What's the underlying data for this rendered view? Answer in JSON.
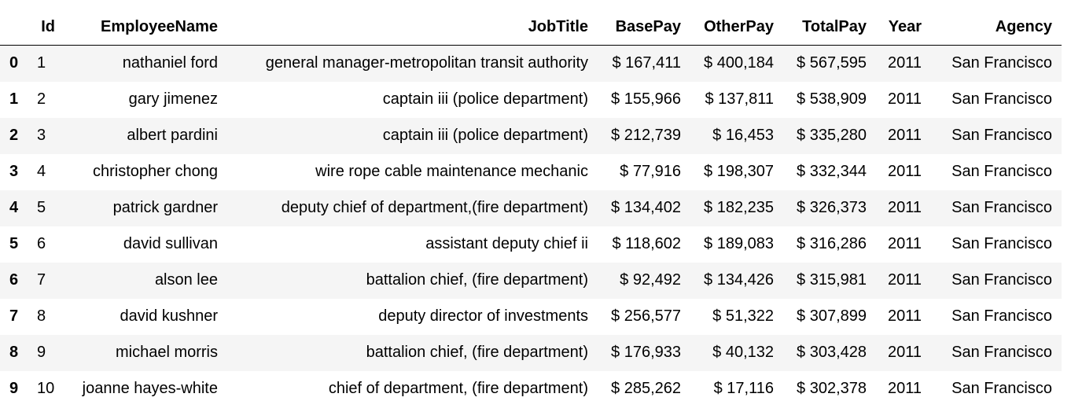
{
  "table": {
    "columns": [
      "",
      "Id",
      "EmployeeName",
      "JobTitle",
      "BasePay",
      "OtherPay",
      "TotalPay",
      "Year",
      "Agency"
    ],
    "rows": [
      {
        "index": "0",
        "id": "1",
        "name": "nathaniel ford",
        "job": "general manager-metropolitan transit authority",
        "base": "$ 167,411",
        "other": "$ 400,184",
        "total": "$ 567,595",
        "year": "2011",
        "agency": "San Francisco"
      },
      {
        "index": "1",
        "id": "2",
        "name": "gary jimenez",
        "job": "captain iii (police department)",
        "base": "$ 155,966",
        "other": "$ 137,811",
        "total": "$ 538,909",
        "year": "2011",
        "agency": "San Francisco"
      },
      {
        "index": "2",
        "id": "3",
        "name": "albert pardini",
        "job": "captain iii (police department)",
        "base": "$ 212,739",
        "other": "$ 16,453",
        "total": "$ 335,280",
        "year": "2011",
        "agency": "San Francisco"
      },
      {
        "index": "3",
        "id": "4",
        "name": "christopher chong",
        "job": "wire rope cable maintenance mechanic",
        "base": "$ 77,916",
        "other": "$ 198,307",
        "total": "$ 332,344",
        "year": "2011",
        "agency": "San Francisco"
      },
      {
        "index": "4",
        "id": "5",
        "name": "patrick gardner",
        "job": "deputy chief of department,(fire department)",
        "base": "$ 134,402",
        "other": "$ 182,235",
        "total": "$ 326,373",
        "year": "2011",
        "agency": "San Francisco"
      },
      {
        "index": "5",
        "id": "6",
        "name": "david sullivan",
        "job": "assistant deputy chief ii",
        "base": "$ 118,602",
        "other": "$ 189,083",
        "total": "$ 316,286",
        "year": "2011",
        "agency": "San Francisco"
      },
      {
        "index": "6",
        "id": "7",
        "name": "alson lee",
        "job": "battalion chief, (fire department)",
        "base": "$ 92,492",
        "other": "$ 134,426",
        "total": "$ 315,981",
        "year": "2011",
        "agency": "San Francisco"
      },
      {
        "index": "7",
        "id": "8",
        "name": "david kushner",
        "job": "deputy director of investments",
        "base": "$ 256,577",
        "other": "$ 51,322",
        "total": "$ 307,899",
        "year": "2011",
        "agency": "San Francisco"
      },
      {
        "index": "8",
        "id": "9",
        "name": "michael morris",
        "job": "battalion chief, (fire department)",
        "base": "$ 176,933",
        "other": "$ 40,132",
        "total": "$ 303,428",
        "year": "2011",
        "agency": "San Francisco"
      },
      {
        "index": "9",
        "id": "10",
        "name": "joanne hayes-white",
        "job": "chief of department, (fire department)",
        "base": "$ 285,262",
        "other": "$ 17,116",
        "total": "$ 302,378",
        "year": "2011",
        "agency": "San Francisco"
      }
    ]
  }
}
